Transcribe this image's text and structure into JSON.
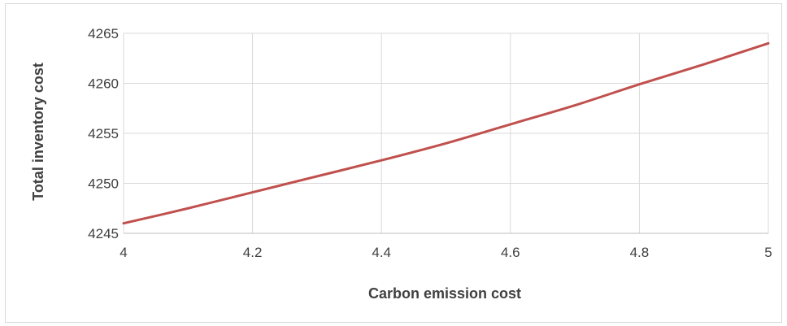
{
  "chart_data": {
    "type": "line",
    "title": "",
    "xlabel": "Carbon emission cost",
    "ylabel": "Total inventory cost",
    "xlim": [
      4,
      5
    ],
    "ylim": [
      4245,
      4265
    ],
    "x_ticks": [
      "4",
      "4.2",
      "4.4",
      "4.6",
      "4.8",
      "5"
    ],
    "x_tick_values": [
      4,
      4.2,
      4.4,
      4.6,
      4.8,
      5
    ],
    "y_ticks": [
      "4245",
      "4250",
      "4255",
      "4260",
      "4265"
    ],
    "y_tick_values": [
      4245,
      4250,
      4255,
      4260,
      4265
    ],
    "grid": true,
    "legend": "none",
    "series": [
      {
        "color": "#c0504d",
        "x": [
          4,
          4.1,
          4.2,
          4.3,
          4.4,
          4.5,
          4.6,
          4.7,
          4.8,
          4.9,
          5
        ],
        "y": [
          4246,
          4247.5,
          4249.1,
          4250.7,
          4252.3,
          4254,
          4255.9,
          4257.8,
          4259.9,
          4261.9,
          4264
        ]
      }
    ]
  }
}
